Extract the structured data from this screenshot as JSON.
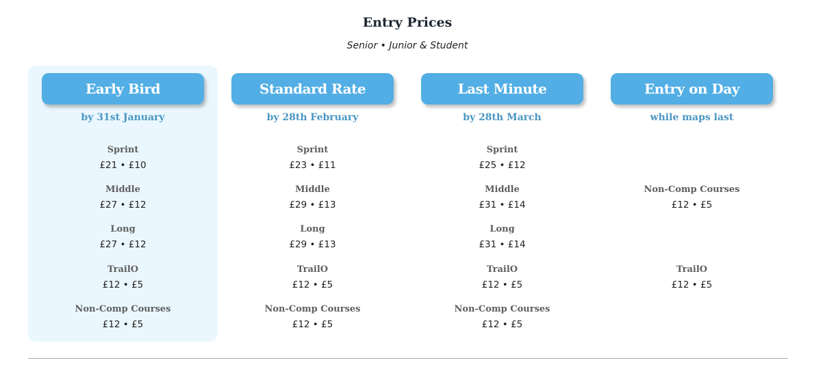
{
  "header": {
    "title": "Entry Prices",
    "subtitle": "Senior • Junior & Student"
  },
  "accent_color": "#52aee4",
  "highlight_color": "#eaf7fe",
  "columns": [
    {
      "name": "Early Bird",
      "deadline": "by 31st January",
      "highlighted": true,
      "items": [
        {
          "label": "Sprint",
          "price": "£21 • £10"
        },
        {
          "label": "Middle",
          "price": "£27 • £12"
        },
        {
          "label": "Long",
          "price": "£27 • £12"
        },
        {
          "label": "TrailO",
          "price": "£12 • £5"
        },
        {
          "label": "Non-Comp Courses",
          "price": "£12 • £5"
        }
      ]
    },
    {
      "name": "Standard Rate",
      "deadline": "by 28th February",
      "highlighted": false,
      "items": [
        {
          "label": "Sprint",
          "price": "£23 • £11"
        },
        {
          "label": "Middle",
          "price": "£29 • £13"
        },
        {
          "label": "Long",
          "price": "£29 • £13"
        },
        {
          "label": "TrailO",
          "price": "£12 • £5"
        },
        {
          "label": "Non-Comp Courses",
          "price": "£12 • £5"
        }
      ]
    },
    {
      "name": "Last Minute",
      "deadline": "by 28th March",
      "highlighted": false,
      "items": [
        {
          "label": "Sprint",
          "price": "£25 • £12"
        },
        {
          "label": "Middle",
          "price": "£31 • £14"
        },
        {
          "label": "Long",
          "price": "£31 • £14"
        },
        {
          "label": "TrailO",
          "price": "£12 • £5"
        },
        {
          "label": "Non-Comp Courses",
          "price": "£12 • £5"
        }
      ]
    },
    {
      "name": "Entry on Day",
      "deadline": "while maps last",
      "highlighted": false,
      "items": [
        null,
        {
          "label": "Non-Comp Courses",
          "price": "£12 • £5"
        },
        null,
        {
          "label": "TrailO",
          "price": "£12 • £5"
        },
        null
      ]
    }
  ]
}
